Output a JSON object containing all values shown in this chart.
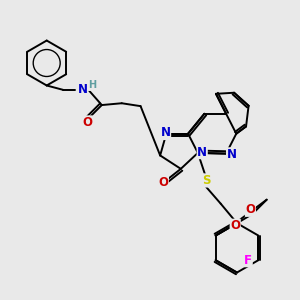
{
  "background_color": "#e9e9e9",
  "atom_colors": {
    "C": "#000000",
    "N": "#0000cc",
    "O": "#cc0000",
    "S": "#cccc00",
    "F": "#ff00ff",
    "H": "#5f9ea0"
  },
  "bond_color": "#000000",
  "bond_width": 1.4,
  "font_size": 8.5
}
